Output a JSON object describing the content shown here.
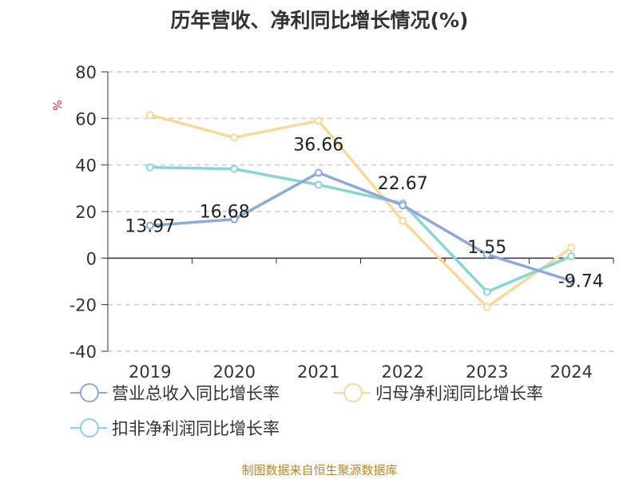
{
  "title": "历年营收、净利同比增长情况(%)",
  "source": "制图数据来自恒生聚源数据库",
  "chart_data": {
    "type": "line",
    "title": "历年营收、净利同比增长情况(%)",
    "ylabel": "%",
    "xlabel": "",
    "categories": [
      "2019",
      "2020",
      "2021",
      "2022",
      "2023",
      "2024"
    ],
    "ylim": [
      -40,
      80
    ],
    "yticks": [
      80,
      60,
      40,
      20,
      0,
      -20,
      -40
    ],
    "grid": true,
    "legend_position": "bottom",
    "series": [
      {
        "name": "营业总收入同比增长率",
        "color": "#8ea9d7",
        "values": [
          13.97,
          16.68,
          36.66,
          22.67,
          1.55,
          -9.74
        ],
        "data_labels": [
          "13.97",
          "16.68",
          "36.66",
          "22.67",
          "1.55",
          "-9.74"
        ]
      },
      {
        "name": "归母净利润同比增长率",
        "color": "#fad89c",
        "values": [
          61.5,
          51.8,
          59.0,
          16.0,
          -21.0,
          4.5
        ]
      },
      {
        "name": "扣非净利润同比增长率",
        "color": "#88d6d4",
        "values": [
          39.0,
          38.3,
          31.5,
          23.5,
          -14.5,
          0.8
        ]
      }
    ]
  }
}
